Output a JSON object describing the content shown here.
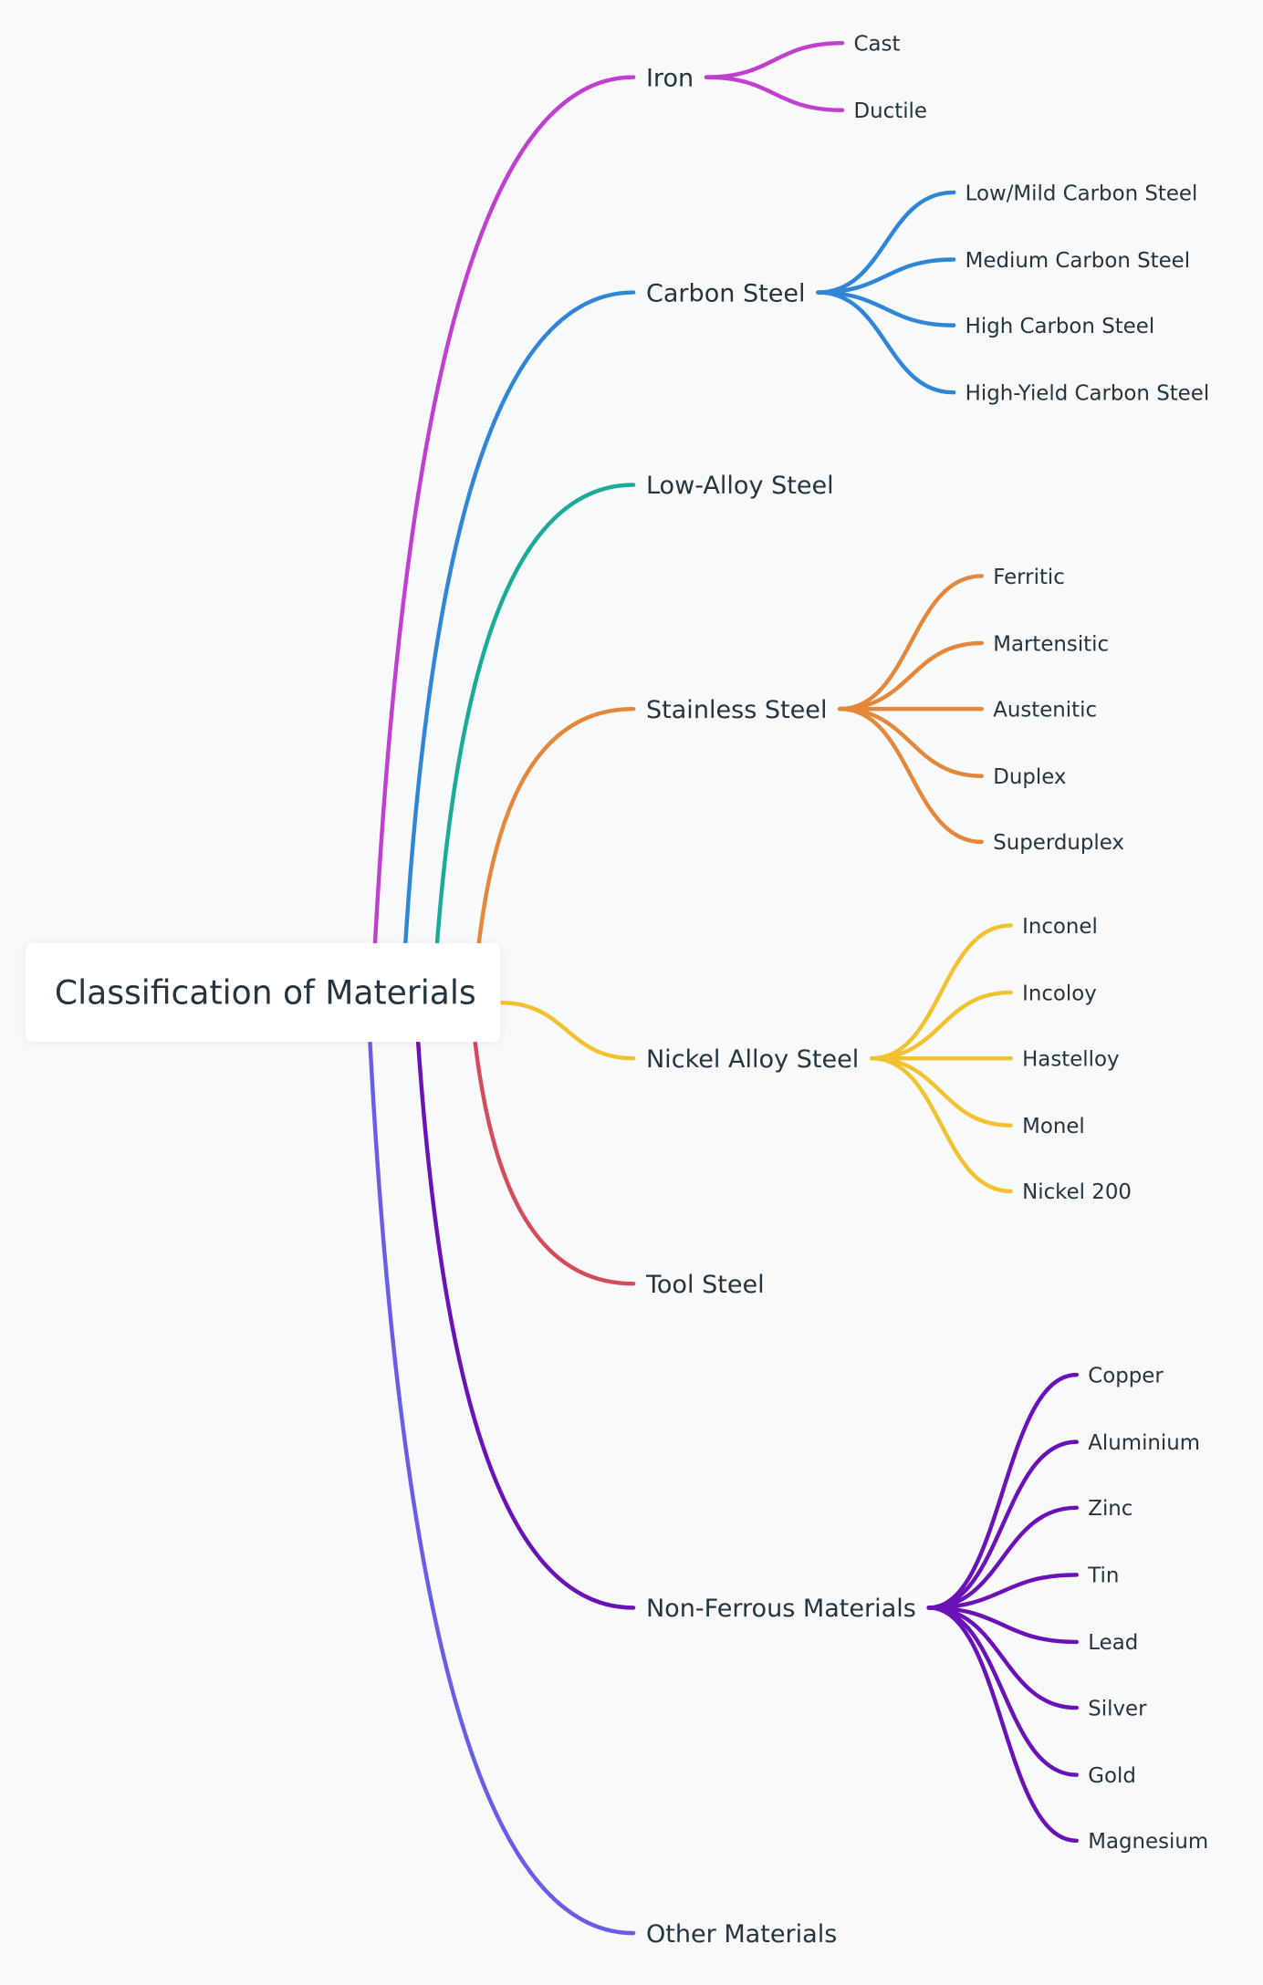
{
  "root": {
    "label": "Classification of Materials"
  },
  "branches": [
    {
      "label": "Iron",
      "color": "#c03fcf",
      "children": [
        "Cast",
        "Ductile"
      ]
    },
    {
      "label": "Carbon Steel",
      "color": "#2f86d6",
      "children": [
        "Low/Mild Carbon Steel",
        "Medium Carbon Steel",
        "High Carbon Steel",
        "High-Yield Carbon Steel"
      ]
    },
    {
      "label": "Low-Alloy Steel",
      "color": "#1aab98",
      "children": []
    },
    {
      "label": "Stainless Steel",
      "color": "#e5873a",
      "children": [
        "Ferritic",
        "Martensitic",
        "Austenitic",
        "Duplex",
        "Superduplex"
      ]
    },
    {
      "label": "Nickel Alloy Steel",
      "color": "#f2c12e",
      "children": [
        "Inconel",
        "Incoloy",
        "Hastelloy",
        "Monel",
        "Nickel 200"
      ]
    },
    {
      "label": "Tool Steel",
      "color": "#d44b5a",
      "children": []
    },
    {
      "label": "Non-Ferrous Materials",
      "color": "#6a11b8",
      "children": [
        "Copper",
        "Aluminium",
        "Zinc",
        "Tin",
        "Lead",
        "Silver",
        "Gold",
        "Magnesium"
      ]
    },
    {
      "label": "Other Materials",
      "color": "#6b5ce7",
      "children": []
    }
  ]
}
